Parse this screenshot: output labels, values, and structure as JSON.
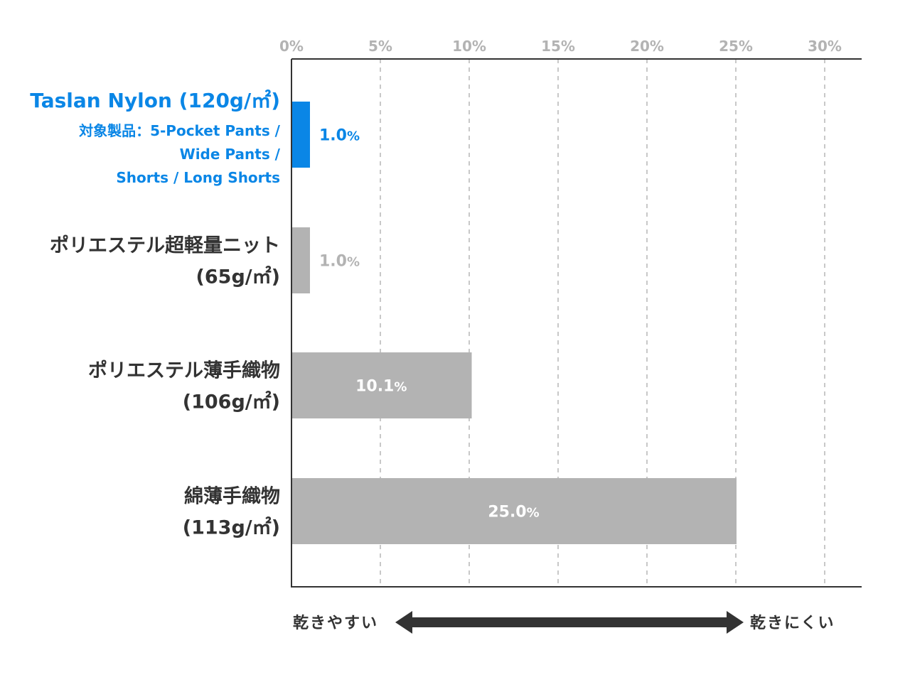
{
  "chart_data": {
    "type": "bar",
    "orientation": "horizontal",
    "categories": [
      {
        "lines": [
          "Taslan Nylon (120g/㎡)"
        ],
        "sub_lines": [
          "対象製品：5-Pocket Pants /",
          "Wide Pants /",
          "Shorts / Long Shorts"
        ],
        "highlight": true
      },
      {
        "lines": [
          "ポリエステル超軽量ニット",
          "(65g/㎡)"
        ],
        "sub_lines": [],
        "highlight": false
      },
      {
        "lines": [
          "ポリエステル薄手織物",
          "(106g/㎡)"
        ],
        "sub_lines": [],
        "highlight": false
      },
      {
        "lines": [
          "綿薄手織物",
          "(113g/㎡)"
        ],
        "sub_lines": [],
        "highlight": false
      }
    ],
    "values": [
      1.0,
      1.0,
      10.1,
      25.0
    ],
    "value_labels": [
      "1.0",
      "1.0",
      "10.1",
      "25.0"
    ],
    "value_unit": "%",
    "x_ticks": [
      0,
      5,
      10,
      15,
      20,
      25,
      30
    ],
    "tick_unit": "%",
    "xlim": [
      0,
      32
    ],
    "grid": "vertical dashed",
    "axis_position": "top"
  },
  "colors": {
    "highlight": "#0a86e6",
    "bar": "#b3b3b3",
    "tick_label": "#b3b3b3",
    "label": "#333333",
    "grid": "#c8c8c8",
    "axis": "#333333"
  },
  "bottom_scale": {
    "left_label": "乾きやすい",
    "right_label": "乾きにくい"
  }
}
